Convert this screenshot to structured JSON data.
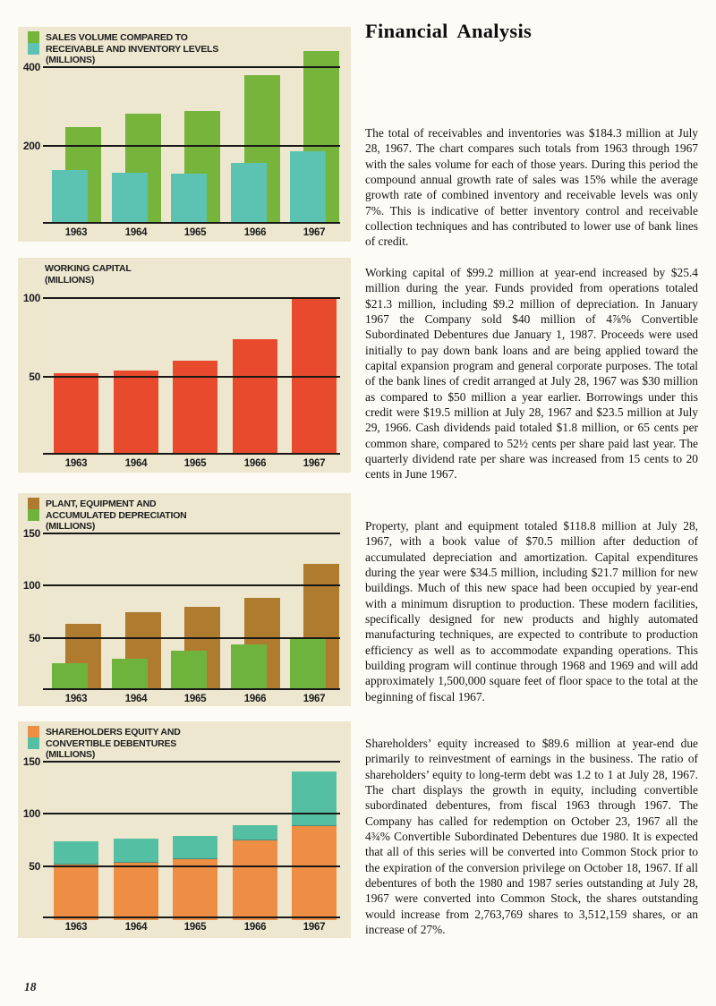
{
  "header": {
    "title": "Financial Analysis"
  },
  "footer": {
    "page_number": "18"
  },
  "colors": {
    "page_background": "#fcfbf6",
    "panel_background": "#ede7d0",
    "grid_line": "#181818",
    "body_text": "#141414",
    "sales_green": "#76b43c",
    "receivables_teal": "#5cc3b2",
    "working_capital_red": "#e84a2d",
    "plant_brown": "#ae7b2f",
    "depreciation_green": "#6eb43c",
    "equity_orange": "#ee8e44",
    "debentures_teal": "#55bfa4"
  },
  "chart_data": [
    {
      "type": "bar-overlap",
      "title_lines": [
        "SALES VOLUME COMPARED TO",
        "RECEIVABLE AND INVENTORY LEVELS",
        "(MILLIONS)"
      ],
      "categories": [
        "1963",
        "1964",
        "1965",
        "1966",
        "1967"
      ],
      "series": [
        {
          "name": "Sales volume",
          "color": "#76b43c",
          "role": "back",
          "values": [
            248,
            282,
            288,
            380,
            442
          ]
        },
        {
          "name": "Receivable and inventory levels",
          "color": "#5cc3b2",
          "role": "front",
          "values": [
            138,
            130,
            128,
            155,
            184.3
          ]
        }
      ],
      "gridlines": [
        200,
        400
      ],
      "ylim": [
        0,
        500
      ],
      "xlabel": "",
      "ylabel": "(MILLIONS)",
      "grid": true,
      "legend_position": "top-left"
    },
    {
      "type": "bar",
      "title_lines": [
        "WORKING CAPITAL",
        "(MILLIONS)"
      ],
      "categories": [
        "1963",
        "1964",
        "1965",
        "1966",
        "1967"
      ],
      "series": [
        {
          "name": "Working capital",
          "color": "#e84a2d",
          "role": "single",
          "values": [
            52,
            54,
            60,
            74,
            99.2
          ]
        }
      ],
      "gridlines": [
        50,
        100
      ],
      "ylim": [
        0,
        110
      ],
      "xlabel": "",
      "ylabel": "(MILLIONS)",
      "grid": true,
      "legend_position": "top-left"
    },
    {
      "type": "bar-overlap",
      "title_lines": [
        "PLANT, EQUIPMENT AND",
        "ACCUMULATED DEPRECIATION",
        "(MILLIONS)"
      ],
      "categories": [
        "1963",
        "1964",
        "1965",
        "1966",
        "1967"
      ],
      "series": [
        {
          "name": "Plant and equipment",
          "color": "#ae7b2f",
          "role": "back",
          "values": [
            62,
            73,
            78,
            87,
            118.8
          ]
        },
        {
          "name": "Accumulated depreciation",
          "color": "#6eb43c",
          "role": "front",
          "values": [
            24,
            28,
            36,
            42,
            48.3
          ]
        }
      ],
      "gridlines": [
        50,
        100,
        150
      ],
      "ylim": [
        0,
        160
      ],
      "xlabel": "",
      "ylabel": "(MILLIONS)",
      "grid": true,
      "legend_position": "top-left"
    },
    {
      "type": "bar-stacked",
      "title_lines": [
        "SHAREHOLDERS EQUITY AND",
        "CONVERTIBLE DEBENTURES",
        "(MILLIONS)"
      ],
      "categories": [
        "1963",
        "1964",
        "1965",
        "1966",
        "1967"
      ],
      "series": [
        {
          "name": "Shareholders equity",
          "color": "#ee8e44",
          "role": "bottom",
          "values": [
            53,
            55,
            58,
            76,
            89.6
          ]
        },
        {
          "name": "Convertible debentures",
          "color": "#55bfa4",
          "role": "top",
          "values": [
            22,
            22,
            22,
            14,
            52
          ]
        }
      ],
      "gridlines": [
        50,
        100,
        150
      ],
      "ylim": [
        0,
        160
      ],
      "xlabel": "",
      "ylabel": "(MILLIONS)",
      "grid": true,
      "legend_position": "top-left"
    }
  ],
  "paragraphs": [
    {
      "name": "receivables-and-inventories",
      "text": "The total of receivables and inventories was $184.3 million at July 28, 1967. The chart compares such totals from 1963 through 1967 with the sales volume for each of those years. During this period the compound annual growth rate of sales was 15% while the average growth rate of combined inventory and receivable levels was only 7%. This is indicative of better inventory control and receivable collection techniques and has contributed to lower use of bank lines of credit."
    },
    {
      "name": "working-capital",
      "text": "Working capital of $99.2 million at year-end increased by $25.4 million during the year. Funds provided from operations totaled $21.3 million, including $9.2 million of depreciation. In January 1967 the Company sold $40 million of 4⅞% Convertible Subordinated Debentures due January 1, 1987. Proceeds were used initially to pay down bank loans and are being applied toward the capital expansion program and general corporate purposes. The total of the bank lines of credit arranged at July 28, 1967 was $30 million as compared to $50 million a year earlier. Borrowings under this credit were $19.5 million at July 28, 1967 and $23.5 million at July 29, 1966. Cash dividends paid totaled $1.8 million, or 65 cents per common share, compared to 52½ cents per share paid last year. The quarterly dividend rate per share was increased from 15 cents to 20 cents in June 1967."
    },
    {
      "name": "plant-and-equipment",
      "text": "Property, plant and equipment totaled $118.8 million at July 28, 1967, with a book value of $70.5 million after deduction of accumulated depreciation and amortization. Capital expenditures during the year were $34.5 million, including $21.7 million for new buildings. Much of this new space had been occupied by year-end with a minimum disruption to production. These modern facilities, specifically designed for new products and highly automated manufacturing techniques, are expected to contribute to production efficiency as well as to accommodate expanding operations. This building program will continue through 1968 and 1969 and will add approximately 1,500,000 square feet of floor space to the total at the beginning of fiscal 1967."
    },
    {
      "name": "shareholders-equity",
      "text": "Shareholders’ equity increased to $89.6 million at year-end due primarily to reinvestment of earnings in the business. The ratio of shareholders’ equity to long-term debt was 1.2 to 1 at July 28, 1967. The chart displays the growth in equity, including convertible subordinated debentures, from fiscal 1963 through 1967. The Company has called for redemption on October 23, 1967 all the 4¾% Convertible Subordinated Debentures due 1980. It is expected that all of this series will be converted into Common Stock prior to the expiration of the conversion privilege on October 18, 1967. If all debentures of both the 1980 and 1987 series outstanding at July 28, 1967 were converted into Common Stock, the shares outstanding would increase from 2,763,769 shares to 3,512,159 shares, or an increase of 27%."
    }
  ]
}
